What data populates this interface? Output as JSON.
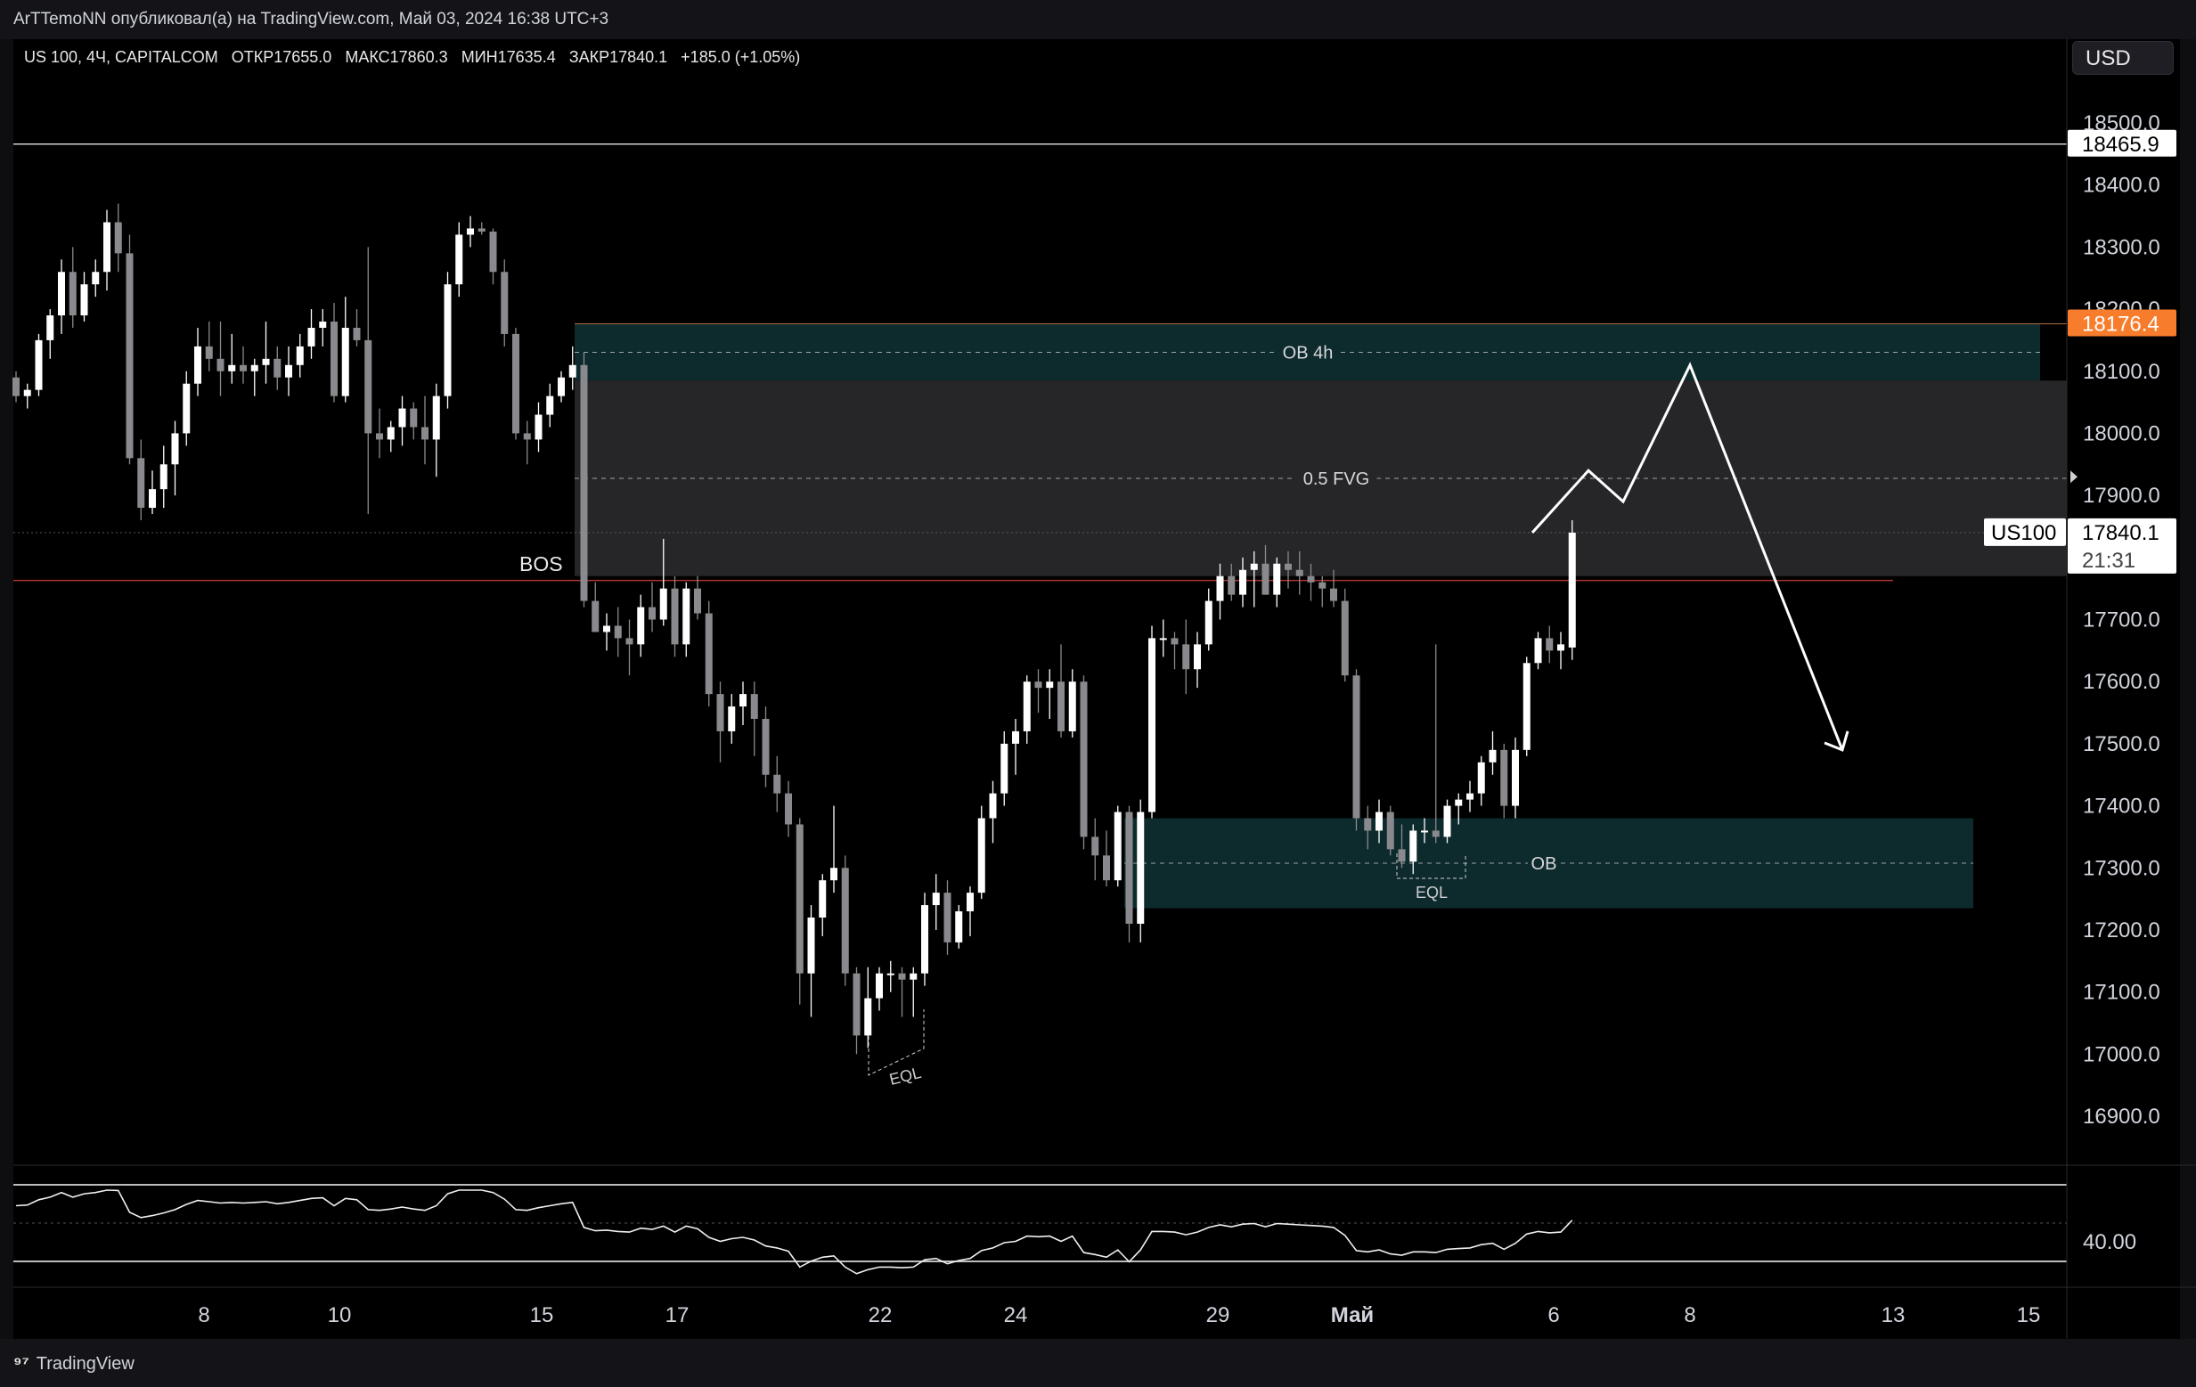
{
  "header": {
    "published_line": "ArTTemoNN опубликовал(а) на TradingView.com, Май 03, 2024 16:38 UTC+3",
    "symbol": "US 100, 4Ч, CAPITALCOM",
    "open": "ОТКР17655.0",
    "high": "МАКС17860.3",
    "low": "МИН17635.4",
    "close": "ЗАКР17840.1",
    "change": "+185.0 (+1.05%)",
    "currency": "USD"
  },
  "footer": {
    "brand": "TradingView"
  },
  "chart_data": {
    "type": "candlestick",
    "symbol": "US100",
    "timeframe": "4Ч",
    "y_ticks": [
      18500,
      18400,
      18300,
      18200,
      18100,
      18000,
      17900,
      17700,
      17600,
      17500,
      17400,
      17300,
      17200,
      17100,
      17000,
      16900
    ],
    "x_ticks": [
      "8",
      "10",
      "15",
      "17",
      "22",
      "24",
      "29",
      "Май",
      "6",
      "8",
      "13",
      "15"
    ],
    "price_labels": [
      {
        "label": "18465.9",
        "price": 18465.9,
        "style": "white"
      },
      {
        "label": "18176.4",
        "price": 18176.4,
        "style": "orange"
      },
      {
        "label": "17840.1",
        "price": 17840.1,
        "style": "white",
        "symbol": "US100",
        "countdown": "21:31"
      }
    ],
    "zones": [
      {
        "label": "OB 4h",
        "top": 18176,
        "bottom": 18085,
        "color": "#0d2a2d"
      },
      {
        "label": "0.5 FVG",
        "top": 18085,
        "bottom": 17770,
        "color": "#262628"
      },
      {
        "label": "OB",
        "top": 17380,
        "bottom": 17235,
        "color": "#0d2a2d"
      }
    ],
    "annotations": [
      "BOS",
      "EQL",
      "EQL"
    ],
    "rsi": {
      "label": "40.00",
      "value": 40.0
    },
    "candles": [
      [
        18090,
        18100,
        18050,
        18060
      ],
      [
        18060,
        18080,
        18040,
        18070
      ],
      [
        18070,
        18160,
        18060,
        18150
      ],
      [
        18150,
        18200,
        18120,
        18190
      ],
      [
        18190,
        18280,
        18160,
        18260
      ],
      [
        18260,
        18300,
        18170,
        18190
      ],
      [
        18190,
        18260,
        18180,
        18240
      ],
      [
        18240,
        18280,
        18220,
        18260
      ],
      [
        18260,
        18360,
        18230,
        18340
      ],
      [
        18340,
        18370,
        18260,
        18290
      ],
      [
        18290,
        18320,
        17950,
        17960
      ],
      [
        17960,
        17990,
        17860,
        17880
      ],
      [
        17880,
        17940,
        17870,
        17910
      ],
      [
        17910,
        17980,
        17880,
        17950
      ],
      [
        17950,
        18020,
        17900,
        18000
      ],
      [
        18000,
        18100,
        17980,
        18080
      ],
      [
        18080,
        18170,
        18060,
        18140
      ],
      [
        18140,
        18180,
        18100,
        18120
      ],
      [
        18120,
        18180,
        18060,
        18100
      ],
      [
        18100,
        18160,
        18080,
        18110
      ],
      [
        18110,
        18140,
        18080,
        18100
      ],
      [
        18100,
        18120,
        18060,
        18110
      ],
      [
        18110,
        18180,
        18080,
        18120
      ],
      [
        18120,
        18140,
        18070,
        18090
      ],
      [
        18090,
        18140,
        18060,
        18110
      ],
      [
        18110,
        18160,
        18090,
        18140
      ],
      [
        18140,
        18200,
        18120,
        18170
      ],
      [
        18170,
        18200,
        18140,
        18180
      ],
      [
        18180,
        18210,
        18050,
        18060
      ],
      [
        18060,
        18220,
        18050,
        18170
      ],
      [
        18170,
        18200,
        18140,
        18150
      ],
      [
        18150,
        18300,
        17870,
        18000
      ],
      [
        18000,
        18040,
        17960,
        17990
      ],
      [
        17990,
        18020,
        17970,
        18010
      ],
      [
        18010,
        18060,
        17980,
        18040
      ],
      [
        18040,
        18050,
        17990,
        18010
      ],
      [
        18010,
        18060,
        17950,
        17990
      ],
      [
        17990,
        18080,
        17930,
        18060
      ],
      [
        18060,
        18260,
        18040,
        18240
      ],
      [
        18240,
        18340,
        18220,
        18320
      ],
      [
        18320,
        18350,
        18300,
        18330
      ],
      [
        18330,
        18340,
        18320,
        18325
      ],
      [
        18325,
        18330,
        18240,
        18260
      ],
      [
        18260,
        18280,
        18140,
        18160
      ],
      [
        18160,
        18170,
        17990,
        18000
      ],
      [
        18000,
        18020,
        17950,
        17990
      ],
      [
        17990,
        18050,
        17970,
        18030
      ],
      [
        18030,
        18080,
        18010,
        18060
      ],
      [
        18060,
        18100,
        18050,
        18090
      ],
      [
        18090,
        18140,
        18070,
        18110
      ],
      [
        18110,
        18130,
        17720,
        17730
      ],
      [
        17730,
        17760,
        17680,
        17680
      ],
      [
        17680,
        17710,
        17650,
        17690
      ],
      [
        17690,
        17720,
        17640,
        17670
      ],
      [
        17670,
        17700,
        17610,
        17660
      ],
      [
        17660,
        17740,
        17640,
        17720
      ],
      [
        17720,
        17760,
        17680,
        17700
      ],
      [
        17700,
        17830,
        17690,
        17750
      ],
      [
        17750,
        17770,
        17640,
        17660
      ],
      [
        17660,
        17760,
        17640,
        17750
      ],
      [
        17750,
        17770,
        17700,
        17710
      ],
      [
        17710,
        17730,
        17560,
        17580
      ],
      [
        17580,
        17600,
        17470,
        17520
      ],
      [
        17520,
        17580,
        17500,
        17560
      ],
      [
        17560,
        17600,
        17530,
        17580
      ],
      [
        17580,
        17600,
        17480,
        17540
      ],
      [
        17540,
        17560,
        17430,
        17450
      ],
      [
        17450,
        17480,
        17390,
        17420
      ],
      [
        17420,
        17440,
        17350,
        17370
      ],
      [
        17370,
        17380,
        17080,
        17130
      ],
      [
        17130,
        17240,
        17060,
        17220
      ],
      [
        17220,
        17290,
        17190,
        17280
      ],
      [
        17280,
        17400,
        17260,
        17300
      ],
      [
        17300,
        17320,
        17110,
        17130
      ],
      [
        17130,
        17140,
        17000,
        17030
      ],
      [
        17030,
        17140,
        17010,
        17090
      ],
      [
        17090,
        17140,
        17070,
        17130
      ],
      [
        17130,
        17150,
        17100,
        17130
      ],
      [
        17130,
        17140,
        17060,
        17120
      ],
      [
        17120,
        17140,
        17060,
        17130
      ],
      [
        17130,
        17260,
        17110,
        17240
      ],
      [
        17240,
        17290,
        17200,
        17260
      ],
      [
        17260,
        17280,
        17160,
        17180
      ],
      [
        17180,
        17240,
        17170,
        17230
      ],
      [
        17230,
        17270,
        17190,
        17260
      ],
      [
        17260,
        17400,
        17250,
        17380
      ],
      [
        17380,
        17440,
        17340,
        17420
      ],
      [
        17420,
        17520,
        17400,
        17500
      ],
      [
        17500,
        17540,
        17450,
        17520
      ],
      [
        17520,
        17610,
        17500,
        17600
      ],
      [
        17600,
        17620,
        17550,
        17590
      ],
      [
        17590,
        17620,
        17540,
        17600
      ],
      [
        17600,
        17660,
        17510,
        17520
      ],
      [
        17520,
        17620,
        17510,
        17600
      ],
      [
        17600,
        17610,
        17330,
        17350
      ],
      [
        17350,
        17380,
        17280,
        17320
      ],
      [
        17320,
        17360,
        17270,
        17280
      ],
      [
        17280,
        17400,
        17270,
        17390
      ],
      [
        17390,
        17400,
        17180,
        17210
      ],
      [
        17210,
        17410,
        17180,
        17390
      ],
      [
        17390,
        17690,
        17380,
        17670
      ],
      [
        17670,
        17700,
        17640,
        17670
      ],
      [
        17670,
        17680,
        17620,
        17660
      ],
      [
        17660,
        17700,
        17580,
        17620
      ],
      [
        17620,
        17680,
        17590,
        17660
      ],
      [
        17660,
        17750,
        17650,
        17730
      ],
      [
        17730,
        17790,
        17700,
        17770
      ],
      [
        17770,
        17790,
        17730,
        17740
      ],
      [
        17740,
        17800,
        17720,
        17780
      ],
      [
        17780,
        17810,
        17720,
        17790
      ],
      [
        17790,
        17820,
        17740,
        17740
      ],
      [
        17740,
        17800,
        17720,
        17790
      ],
      [
        17790,
        17810,
        17750,
        17780
      ],
      [
        17780,
        17810,
        17740,
        17770
      ],
      [
        17770,
        17790,
        17730,
        17760
      ],
      [
        17760,
        17770,
        17720,
        17750
      ],
      [
        17750,
        17780,
        17720,
        17730
      ],
      [
        17730,
        17750,
        17600,
        17610
      ],
      [
        17610,
        17620,
        17360,
        17380
      ],
      [
        17380,
        17400,
        17330,
        17360
      ],
      [
        17360,
        17410,
        17340,
        17390
      ],
      [
        17390,
        17400,
        17320,
        17330
      ],
      [
        17330,
        17370,
        17300,
        17310
      ],
      [
        17310,
        17370,
        17290,
        17360
      ],
      [
        17360,
        17380,
        17340,
        17360
      ],
      [
        17360,
        17660,
        17340,
        17350
      ],
      [
        17350,
        17410,
        17340,
        17400
      ],
      [
        17400,
        17420,
        17370,
        17410
      ],
      [
        17410,
        17440,
        17390,
        17420
      ],
      [
        17420,
        17480,
        17400,
        17470
      ],
      [
        17470,
        17520,
        17450,
        17490
      ],
      [
        17490,
        17500,
        17380,
        17400
      ],
      [
        17400,
        17510,
        17380,
        17490
      ],
      [
        17490,
        17640,
        17480,
        17630
      ],
      [
        17630,
        17680,
        17620,
        17670
      ],
      [
        17670,
        17690,
        17630,
        17650
      ],
      [
        17650,
        17680,
        17620,
        17660
      ],
      [
        17655,
        17860,
        17635,
        17840
      ]
    ],
    "projection": [
      {
        "x_label": "after last",
        "y": 17840
      },
      {
        "y": 17940
      },
      {
        "y": 17890
      },
      {
        "y": 18110
      },
      {
        "y": 17490
      }
    ]
  }
}
